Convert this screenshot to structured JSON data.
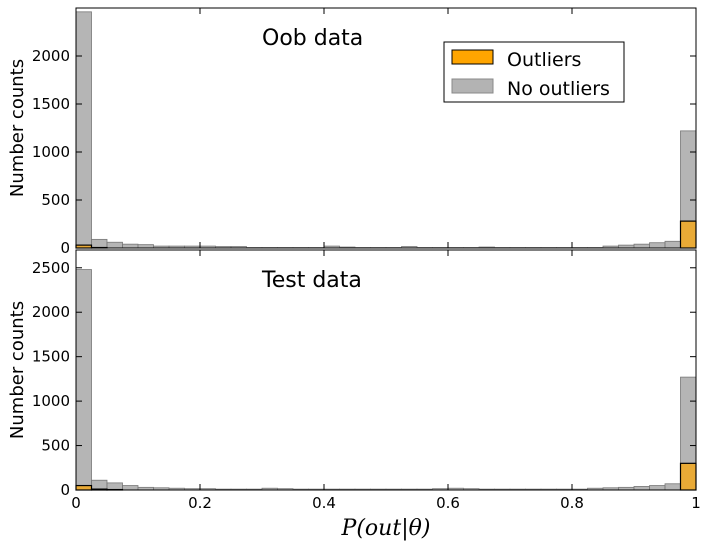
{
  "colors": {
    "outliers_fill": "#FFA500",
    "no_outliers_fill": "#999999",
    "overlap_fill": "#B8780C",
    "axis": "#000000"
  },
  "chart_data": [
    {
      "type": "bar",
      "panel": "top",
      "title": "Oob data",
      "xlabel": "",
      "ylabel": "Number counts",
      "xlim": [
        0,
        1
      ],
      "ylim": [
        0,
        2500
      ],
      "yticks": [
        0,
        500,
        1000,
        1500,
        2000
      ],
      "bin_width": 0.025,
      "legend": {
        "placement": "top-right",
        "entries": [
          "Outliers",
          "No outliers"
        ]
      },
      "series": [
        {
          "name": "No outliers",
          "values": [
            2460,
            90,
            60,
            40,
            35,
            20,
            20,
            20,
            20,
            15,
            15,
            5,
            5,
            5,
            5,
            5,
            20,
            10,
            5,
            5,
            5,
            15,
            5,
            5,
            5,
            5,
            10,
            5,
            5,
            5,
            5,
            5,
            5,
            5,
            20,
            30,
            40,
            55,
            70,
            1220
          ]
        },
        {
          "name": "Outliers",
          "values": [
            30,
            5,
            0,
            0,
            0,
            0,
            0,
            0,
            0,
            0,
            0,
            0,
            0,
            0,
            0,
            0,
            0,
            0,
            0,
            0,
            0,
            0,
            0,
            0,
            0,
            0,
            0,
            0,
            0,
            0,
            0,
            0,
            0,
            0,
            0,
            0,
            0,
            0,
            0,
            280
          ]
        }
      ]
    },
    {
      "type": "bar",
      "panel": "bottom",
      "title": "Test data",
      "xlabel": "P(out|θ)",
      "ylabel": "Number counts",
      "xlim": [
        0,
        1
      ],
      "ylim": [
        0,
        2700
      ],
      "yticks": [
        0,
        500,
        1000,
        1500,
        2000,
        2500
      ],
      "xticks": [
        "0",
        "0.2",
        "0.4",
        "0.6",
        "0.8",
        "1"
      ],
      "bin_width": 0.025,
      "series": [
        {
          "name": "No outliers",
          "values": [
            2480,
            110,
            80,
            50,
            30,
            25,
            20,
            15,
            15,
            10,
            10,
            10,
            20,
            15,
            10,
            10,
            10,
            10,
            10,
            10,
            10,
            10,
            10,
            15,
            20,
            15,
            10,
            10,
            10,
            10,
            10,
            10,
            10,
            20,
            25,
            30,
            40,
            50,
            70,
            1270
          ]
        },
        {
          "name": "Outliers",
          "values": [
            50,
            10,
            5,
            0,
            0,
            0,
            0,
            0,
            0,
            0,
            0,
            0,
            0,
            0,
            0,
            0,
            0,
            0,
            0,
            0,
            0,
            0,
            0,
            0,
            0,
            0,
            0,
            0,
            0,
            0,
            0,
            0,
            0,
            0,
            0,
            0,
            0,
            0,
            0,
            300
          ]
        }
      ]
    }
  ]
}
